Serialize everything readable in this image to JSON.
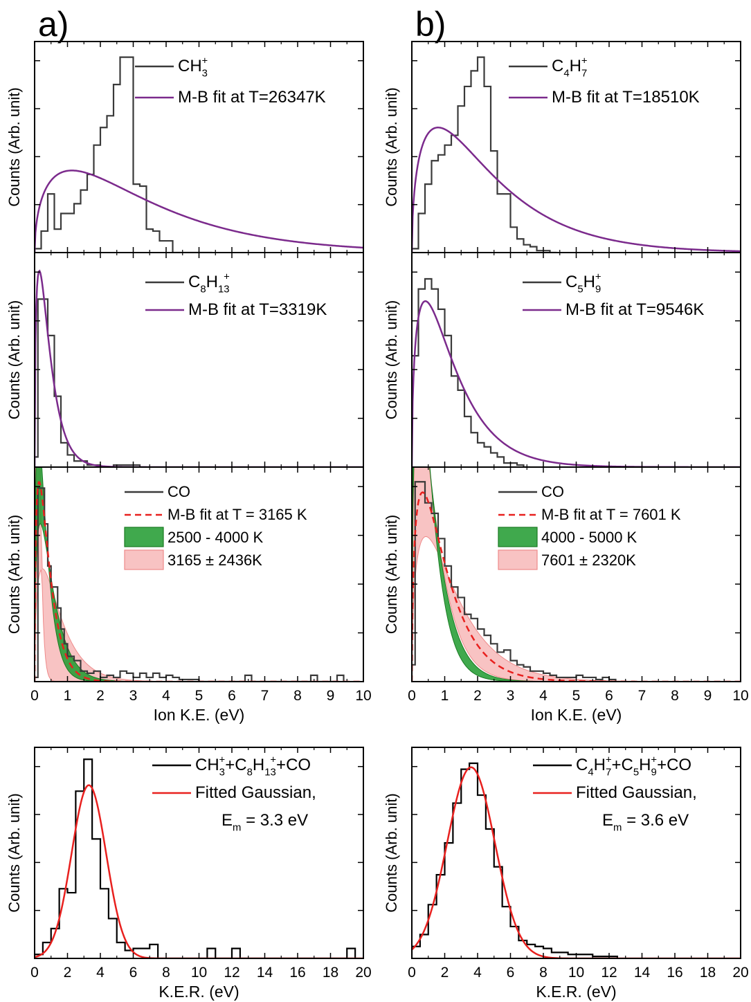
{
  "figure": {
    "panel_a_label": "a)",
    "panel_b_label": "b)",
    "ylabel": "Counts (Arb. unit)",
    "xlabel_ke": "Ion K.E. (eV)",
    "xlabel_ker": "K.E.R. (eV)"
  },
  "colors": {
    "histogram": "#3a3a3a",
    "mb_fit": "#7b2a8c",
    "red_fit": "#e8201e",
    "green_fill": "#1f9a2e",
    "pink_fill": "#f4a3a3"
  },
  "chart_data": [
    {
      "id": "a1",
      "type": "line",
      "xlim": [
        0,
        10
      ],
      "ylim": [
        0,
        1.08
      ],
      "x_ticks": [
        "0",
        "1",
        "2",
        "3",
        "4",
        "5",
        "6",
        "7",
        "8",
        "9",
        "10"
      ],
      "show_tick_labels": false,
      "hist": {
        "name": "CH3+",
        "edges": [
          0,
          0.2,
          0.4,
          0.6,
          0.8,
          1.0,
          1.2,
          1.4,
          1.6,
          1.8,
          2.0,
          2.2,
          2.4,
          2.6,
          2.8,
          3.0,
          3.2,
          3.4,
          3.6,
          3.8,
          4.0,
          4.2,
          4.4,
          4.6,
          4.8,
          5.0,
          5.2,
          5.4
        ],
        "values": [
          0.02,
          0.11,
          0.3,
          0.12,
          0.2,
          0.2,
          0.25,
          0.32,
          0.4,
          0.55,
          0.64,
          0.7,
          0.86,
          1.0,
          1.0,
          0.35,
          0.34,
          0.12,
          0.11,
          0.06,
          0.06,
          0.0,
          0.0,
          0.0,
          0.0,
          0.0,
          0.0
        ]
      },
      "fit": {
        "name": "M-B fit at T=26347K",
        "T": 26347,
        "peak_x": 1.135,
        "peak_y": 0.42,
        "xmax": 10
      },
      "legend": [
        {
          "kind": "line",
          "color": "hist",
          "label_main": "CH",
          "label_sub": "3",
          "label_sup": "+",
          "label_tail": ""
        },
        {
          "kind": "line",
          "color": "fit",
          "label_main": "M-B fit at T=26347K",
          "label_sub": "",
          "label_sup": "",
          "label_tail": ""
        }
      ]
    },
    {
      "id": "a2",
      "type": "line",
      "xlim": [
        0,
        10
      ],
      "ylim": [
        0,
        1.06
      ],
      "x_ticks": [
        "0",
        "1",
        "2",
        "3",
        "4",
        "5",
        "6",
        "7",
        "8",
        "9",
        "10"
      ],
      "show_tick_labels": false,
      "hist": {
        "name": "C8H13",
        "edges": [
          0,
          0.1,
          0.2,
          0.3,
          0.4,
          0.5,
          0.6,
          0.7,
          0.8,
          0.9,
          1.0,
          1.2,
          1.4,
          1.6,
          1.8,
          2.0,
          2.2,
          2.4,
          2.6,
          2.8,
          3.0,
          3.2,
          3.4
        ],
        "values": [
          0.05,
          0.83,
          0.83,
          0.83,
          0.65,
          0.65,
          0.35,
          0.35,
          0.12,
          0.12,
          0.06,
          0.03,
          0.03,
          0.01,
          0.01,
          0.0,
          0.0,
          0.01,
          0.01,
          0.01,
          0.01,
          0.0
        ]
      },
      "fit": {
        "name": "M-B fit at T=3319K",
        "T": 3319,
        "peak_x": 0.143,
        "peak_y": 0.97,
        "xmax": 10
      },
      "legend": [
        {
          "kind": "line",
          "color": "hist",
          "label_main": "C",
          "label_sub": "8",
          "label_sup": "",
          "label_tail": "H",
          "label_sub2": "13",
          "label_sup2": "+"
        },
        {
          "kind": "line",
          "color": "fit",
          "label_main": "M-B fit at T=3319K",
          "label_sub": "",
          "label_sup": "",
          "label_tail": ""
        }
      ]
    },
    {
      "id": "a3",
      "type": "area",
      "xlim": [
        0,
        10
      ],
      "ylim": [
        0,
        1.02
      ],
      "x_ticks": [
        "0",
        "1",
        "2",
        "3",
        "4",
        "5",
        "6",
        "7",
        "8",
        "9",
        "10"
      ],
      "show_tick_labels": true,
      "hist": {
        "name": "CO",
        "edges": [
          0,
          0.1,
          0.2,
          0.3,
          0.4,
          0.5,
          0.6,
          0.7,
          0.8,
          0.9,
          1.0,
          1.2,
          1.4,
          1.6,
          1.8,
          2.0,
          2.2,
          2.4,
          2.6,
          2.8,
          3.0,
          3.2,
          3.4,
          3.6,
          3.8,
          4.0,
          4.2,
          4.4,
          4.6,
          4.8,
          5.0,
          6.4,
          6.6,
          8.4,
          8.6,
          9.2,
          9.4
        ],
        "values": [
          0.02,
          0.92,
          0.92,
          0.75,
          0.55,
          0.45,
          0.45,
          0.35,
          0.25,
          0.18,
          0.12,
          0.1,
          0.05,
          0.04,
          0.05,
          0.02,
          0.03,
          0.02,
          0.05,
          0.04,
          0.02,
          0.04,
          0.02,
          0.04,
          0.02,
          0.03,
          0.02,
          0.01,
          0.01,
          0.01,
          0.0,
          0.03,
          0.0,
          0.03,
          0.0,
          0.03
        ]
      },
      "fit": {
        "name": "M-B fit at T = 3165 K",
        "T": 3165,
        "peak_x": 0.136,
        "peak_y": 0.95,
        "xmax": 10
      },
      "bands": [
        {
          "label": "2500 - 4000 K",
          "T_low": 2500,
          "T_high": 4000,
          "color": "green"
        },
        {
          "label": "3165 ± 2436K",
          "T_low": 729,
          "T_high": 5601,
          "color": "pink"
        }
      ],
      "legend": [
        {
          "kind": "line",
          "color": "hist",
          "label_main": "CO",
          "label_sub": "",
          "label_sup": "",
          "label_tail": ""
        },
        {
          "kind": "dash",
          "color": "red",
          "label_main": "M-B fit at T = 3165 K",
          "label_sub": "",
          "label_sup": "",
          "label_tail": ""
        },
        {
          "kind": "box",
          "color": "green",
          "label_main": "2500 - 4000 K",
          "label_sub": "",
          "label_sup": "",
          "label_tail": ""
        },
        {
          "kind": "box",
          "color": "pink",
          "label_main": "3165 ± 2436K",
          "label_sub": "",
          "label_sup": "",
          "label_tail": ""
        }
      ]
    },
    {
      "id": "a4",
      "type": "line",
      "xlim": [
        0,
        20
      ],
      "ylim": [
        0,
        1.06
      ],
      "x_ticks": [
        "0",
        "2",
        "4",
        "6",
        "8",
        "10",
        "12",
        "14",
        "16",
        "18",
        "20"
      ],
      "show_tick_labels": true,
      "hist": {
        "name": "CH3+ + C8H13+ + CO",
        "edges": [
          0,
          0.5,
          1.0,
          1.5,
          2.0,
          2.5,
          3.0,
          3.5,
          4.0,
          4.5,
          5.0,
          5.5,
          6.0,
          6.5,
          7.0,
          7.5,
          8.0,
          10.5,
          11.0,
          12.0,
          12.5,
          19.0,
          19.5
        ],
        "values": [
          0.02,
          0.08,
          0.15,
          0.35,
          0.33,
          0.84,
          1.0,
          0.6,
          0.35,
          0.2,
          0.08,
          0.04,
          0.05,
          0.05,
          0.07,
          0.0,
          0.0,
          0.05,
          0.0,
          0.05,
          0.0,
          0.05
        ]
      },
      "gauss": {
        "name": "Fitted Gaussian,",
        "mu": 3.3,
        "sigma": 1.05,
        "peak": 0.87
      },
      "legend": [
        {
          "kind": "line",
          "color": "black",
          "label_main": "CH",
          "label_sub": "3",
          "label_sup": "+",
          "label_tail": "+C",
          "label_sub2": "8",
          "label_tail2": "H",
          "label_sub3": "13",
          "label_sup3": "+",
          "label_tail3": "+CO"
        },
        {
          "kind": "line",
          "color": "red",
          "label_main": "Fitted Gaussian,",
          "label_sub": "",
          "label_sup": "",
          "label_tail": ""
        },
        {
          "kind": "none",
          "color": "",
          "label_main": "E",
          "label_sub": "m",
          "label_sup": "",
          "label_tail": " = 3.3 eV"
        }
      ]
    },
    {
      "id": "b1",
      "type": "line",
      "xlim": [
        0,
        10
      ],
      "ylim": [
        0,
        1.08
      ],
      "x_ticks": [
        "0",
        "1",
        "2",
        "3",
        "4",
        "5",
        "6",
        "7",
        "8",
        "9",
        "10"
      ],
      "show_tick_labels": false,
      "hist": {
        "name": "C4H7+",
        "edges": [
          0,
          0.2,
          0.4,
          0.6,
          0.8,
          1.0,
          1.2,
          1.4,
          1.6,
          1.8,
          2.0,
          2.2,
          2.4,
          2.6,
          2.8,
          3.0,
          3.2,
          3.4,
          3.6,
          3.8,
          4.0,
          4.2,
          4.4
        ],
        "values": [
          0.02,
          0.2,
          0.35,
          0.47,
          0.5,
          0.55,
          0.6,
          0.75,
          0.85,
          0.93,
          1.0,
          0.85,
          0.52,
          0.3,
          0.3,
          0.13,
          0.07,
          0.04,
          0.03,
          0.01,
          0.01,
          0.0
        ]
      },
      "fit": {
        "name": "M-B fit at T=18510K",
        "T": 18510,
        "peak_x": 0.798,
        "peak_y": 0.64,
        "xmax": 10
      },
      "legend": [
        {
          "kind": "line",
          "color": "hist",
          "label_main": "C",
          "label_sub": "4",
          "label_sup": "",
          "label_tail": "H",
          "label_sub2": "7",
          "label_sup2": "+"
        },
        {
          "kind": "line",
          "color": "fit",
          "label_main": "M-B fit at T=18510K",
          "label_sub": "",
          "label_sup": "",
          "label_tail": ""
        }
      ]
    },
    {
      "id": "b2",
      "type": "line",
      "xlim": [
        0,
        10
      ],
      "ylim": [
        0,
        1.06
      ],
      "x_ticks": [
        "0",
        "1",
        "2",
        "3",
        "4",
        "5",
        "6",
        "7",
        "8",
        "9",
        "10"
      ],
      "show_tick_labels": false,
      "hist": {
        "name": "C5H9+",
        "edges": [
          0,
          0.1,
          0.2,
          0.4,
          0.6,
          0.8,
          1.0,
          1.2,
          1.4,
          1.6,
          1.8,
          2.0,
          2.2,
          2.4,
          2.6,
          2.8,
          3.0,
          3.2,
          3.4,
          3.6
        ],
        "values": [
          0.55,
          0.55,
          0.88,
          0.93,
          0.88,
          0.78,
          0.65,
          0.45,
          0.38,
          0.25,
          0.17,
          0.12,
          0.1,
          0.07,
          0.05,
          0.02,
          0.02,
          0.01,
          0.0
        ]
      },
      "fit": {
        "name": "M-B fit at T=9546K",
        "T": 9546,
        "peak_x": 0.411,
        "peak_y": 0.82,
        "xmax": 10
      },
      "legend": [
        {
          "kind": "line",
          "color": "hist",
          "label_main": "C",
          "label_sub": "5",
          "label_sup": "",
          "label_tail": "H",
          "label_sub2": "9",
          "label_sup2": "+"
        },
        {
          "kind": "line",
          "color": "fit",
          "label_main": "M-B fit at T=9546K",
          "label_sub": "",
          "label_sup": "",
          "label_tail": ""
        }
      ]
    },
    {
      "id": "b3",
      "type": "area",
      "xlim": [
        0,
        10
      ],
      "ylim": [
        0,
        1.02
      ],
      "x_ticks": [
        "0",
        "1",
        "2",
        "3",
        "4",
        "5",
        "6",
        "7",
        "8",
        "9",
        "10"
      ],
      "show_tick_labels": true,
      "hist": {
        "name": "CO",
        "edges": [
          0,
          0.1,
          0.2,
          0.4,
          0.6,
          0.8,
          1.0,
          1.2,
          1.4,
          1.6,
          1.8,
          2.0,
          2.2,
          2.4,
          2.6,
          2.8,
          3.0,
          3.2,
          3.4,
          3.6,
          3.8,
          4.0,
          4.2,
          4.4,
          4.6,
          4.8,
          5.0,
          5.2,
          5.4,
          5.6,
          5.8,
          6.0,
          6.2
        ],
        "values": [
          0.08,
          0.95,
          0.95,
          0.85,
          0.8,
          0.68,
          0.55,
          0.45,
          0.4,
          0.32,
          0.3,
          0.25,
          0.22,
          0.18,
          0.14,
          0.15,
          0.1,
          0.08,
          0.07,
          0.05,
          0.05,
          0.04,
          0.03,
          0.02,
          0.02,
          0.02,
          0.03,
          0.02,
          0.02,
          0.01,
          0.02,
          0.01
        ]
      },
      "fit": {
        "name": "M-B fit at T = 7601 K",
        "T": 7601,
        "peak_x": 0.328,
        "peak_y": 0.9,
        "xmax": 10
      },
      "bands": [
        {
          "label": "4000 - 5000 K",
          "T_low": 4000,
          "T_high": 5000,
          "color": "green"
        },
        {
          "label": "7601 ± 2320K",
          "T_low": 5281,
          "T_high": 9921,
          "color": "pink"
        }
      ],
      "legend": [
        {
          "kind": "line",
          "color": "hist",
          "label_main": "CO",
          "label_sub": "",
          "label_sup": "",
          "label_tail": ""
        },
        {
          "kind": "dash",
          "color": "red",
          "label_main": "M-B fit at T = 7601 K",
          "label_sub": "",
          "label_sup": "",
          "label_tail": ""
        },
        {
          "kind": "box",
          "color": "green",
          "label_main": "4000 - 5000 K",
          "label_sub": "",
          "label_sup": "",
          "label_tail": ""
        },
        {
          "kind": "box",
          "color": "pink",
          "label_main": "7601 ± 2320K",
          "label_sub": "",
          "label_sup": "",
          "label_tail": ""
        }
      ]
    },
    {
      "id": "b4",
      "type": "line",
      "xlim": [
        0,
        20
      ],
      "ylim": [
        0,
        1.06
      ],
      "x_ticks": [
        "0",
        "2",
        "4",
        "6",
        "8",
        "10",
        "12",
        "14",
        "16",
        "18",
        "20"
      ],
      "show_tick_labels": true,
      "hist": {
        "name": "C4H7+ + C5H9+ + CO",
        "edges": [
          0,
          0.5,
          1.0,
          1.5,
          2.0,
          2.5,
          3.0,
          3.5,
          4.0,
          4.5,
          5.0,
          5.5,
          6.0,
          6.5,
          7.0,
          7.5,
          8.0,
          8.5,
          9.0,
          9.5,
          10.0,
          10.5,
          11.0,
          11.5,
          12.0,
          12.5
        ],
        "values": [
          0.06,
          0.12,
          0.27,
          0.42,
          0.58,
          0.78,
          0.95,
          0.98,
          0.82,
          0.65,
          0.46,
          0.26,
          0.16,
          0.09,
          0.07,
          0.06,
          0.05,
          0.03,
          0.03,
          0.02,
          0.02,
          0.02,
          0.01,
          0.01,
          0.01
        ]
      },
      "gauss": {
        "name": "Fitted Gaussian,",
        "mu": 3.6,
        "sigma": 1.45,
        "peak": 0.96
      },
      "legend": [
        {
          "kind": "line",
          "color": "black",
          "label_main": "C",
          "label_sub": "4",
          "label_sup": "",
          "label_tail": "H",
          "label_sub2": "7",
          "label_sup2": "+",
          "label_tail2": "+C",
          "label_sub3": "5",
          "label_tail3": "H",
          "label_sub4": "9",
          "label_sup4": "+",
          "label_tail4": "+CO"
        },
        {
          "kind": "line",
          "color": "red",
          "label_main": "Fitted Gaussian,",
          "label_sub": "",
          "label_sup": "",
          "label_tail": ""
        },
        {
          "kind": "none",
          "color": "",
          "label_main": "E",
          "label_sub": "m",
          "label_sup": "",
          "label_tail": " = 3.6 eV"
        }
      ]
    }
  ]
}
